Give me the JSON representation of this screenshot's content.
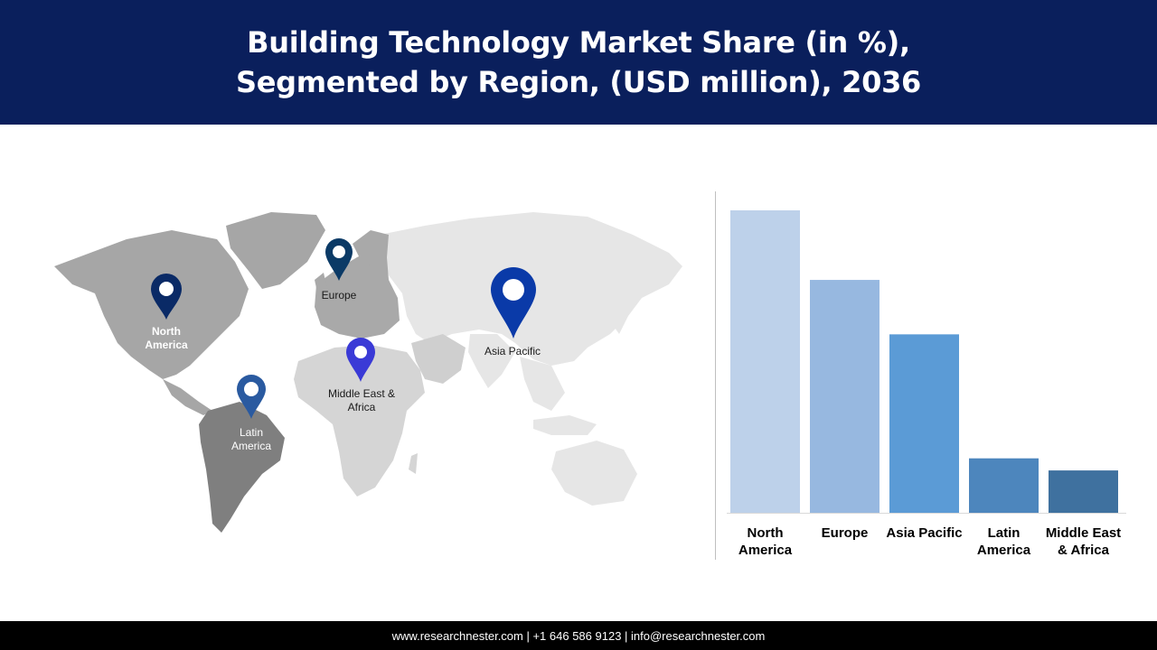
{
  "header": {
    "title_line1": "Building Technology Market Share (in %),",
    "title_line2": "Segmented by Region, (USD million), 2036"
  },
  "map": {
    "pins": [
      {
        "id": "north-america",
        "lines": [
          "North",
          "America"
        ],
        "color": "#0a2a66"
      },
      {
        "id": "europe",
        "lines": [
          "Europe"
        ],
        "color": "#0b3a66"
      },
      {
        "id": "asia-pacific",
        "lines": [
          "Asia Pacific"
        ],
        "color": "#0a3aa8"
      },
      {
        "id": "middle-east-africa",
        "lines": [
          "Middle East &",
          "Africa"
        ],
        "color": "#3a3ad6"
      },
      {
        "id": "latin-america",
        "lines": [
          "Latin",
          "America"
        ],
        "color": "#2a5aa0"
      }
    ]
  },
  "chart_data": {
    "type": "bar",
    "categories": [
      [
        "North",
        "America"
      ],
      [
        "Europe"
      ],
      [
        "Asia Pacific"
      ],
      [
        "Latin",
        "America"
      ],
      [
        "Middle East",
        "& Africa"
      ]
    ],
    "values": [
      100,
      77,
      59,
      18,
      14
    ],
    "ylim": [
      0,
      100
    ],
    "colors": [
      "#bdd1ea",
      "#97b8e0",
      "#5b9bd6",
      "#4d86bd",
      "#3f719f"
    ],
    "grid": false,
    "legend": "none"
  },
  "footer": {
    "text": "www.researchnester.com | +1 646 586 9123 | info@researchnester.com"
  }
}
